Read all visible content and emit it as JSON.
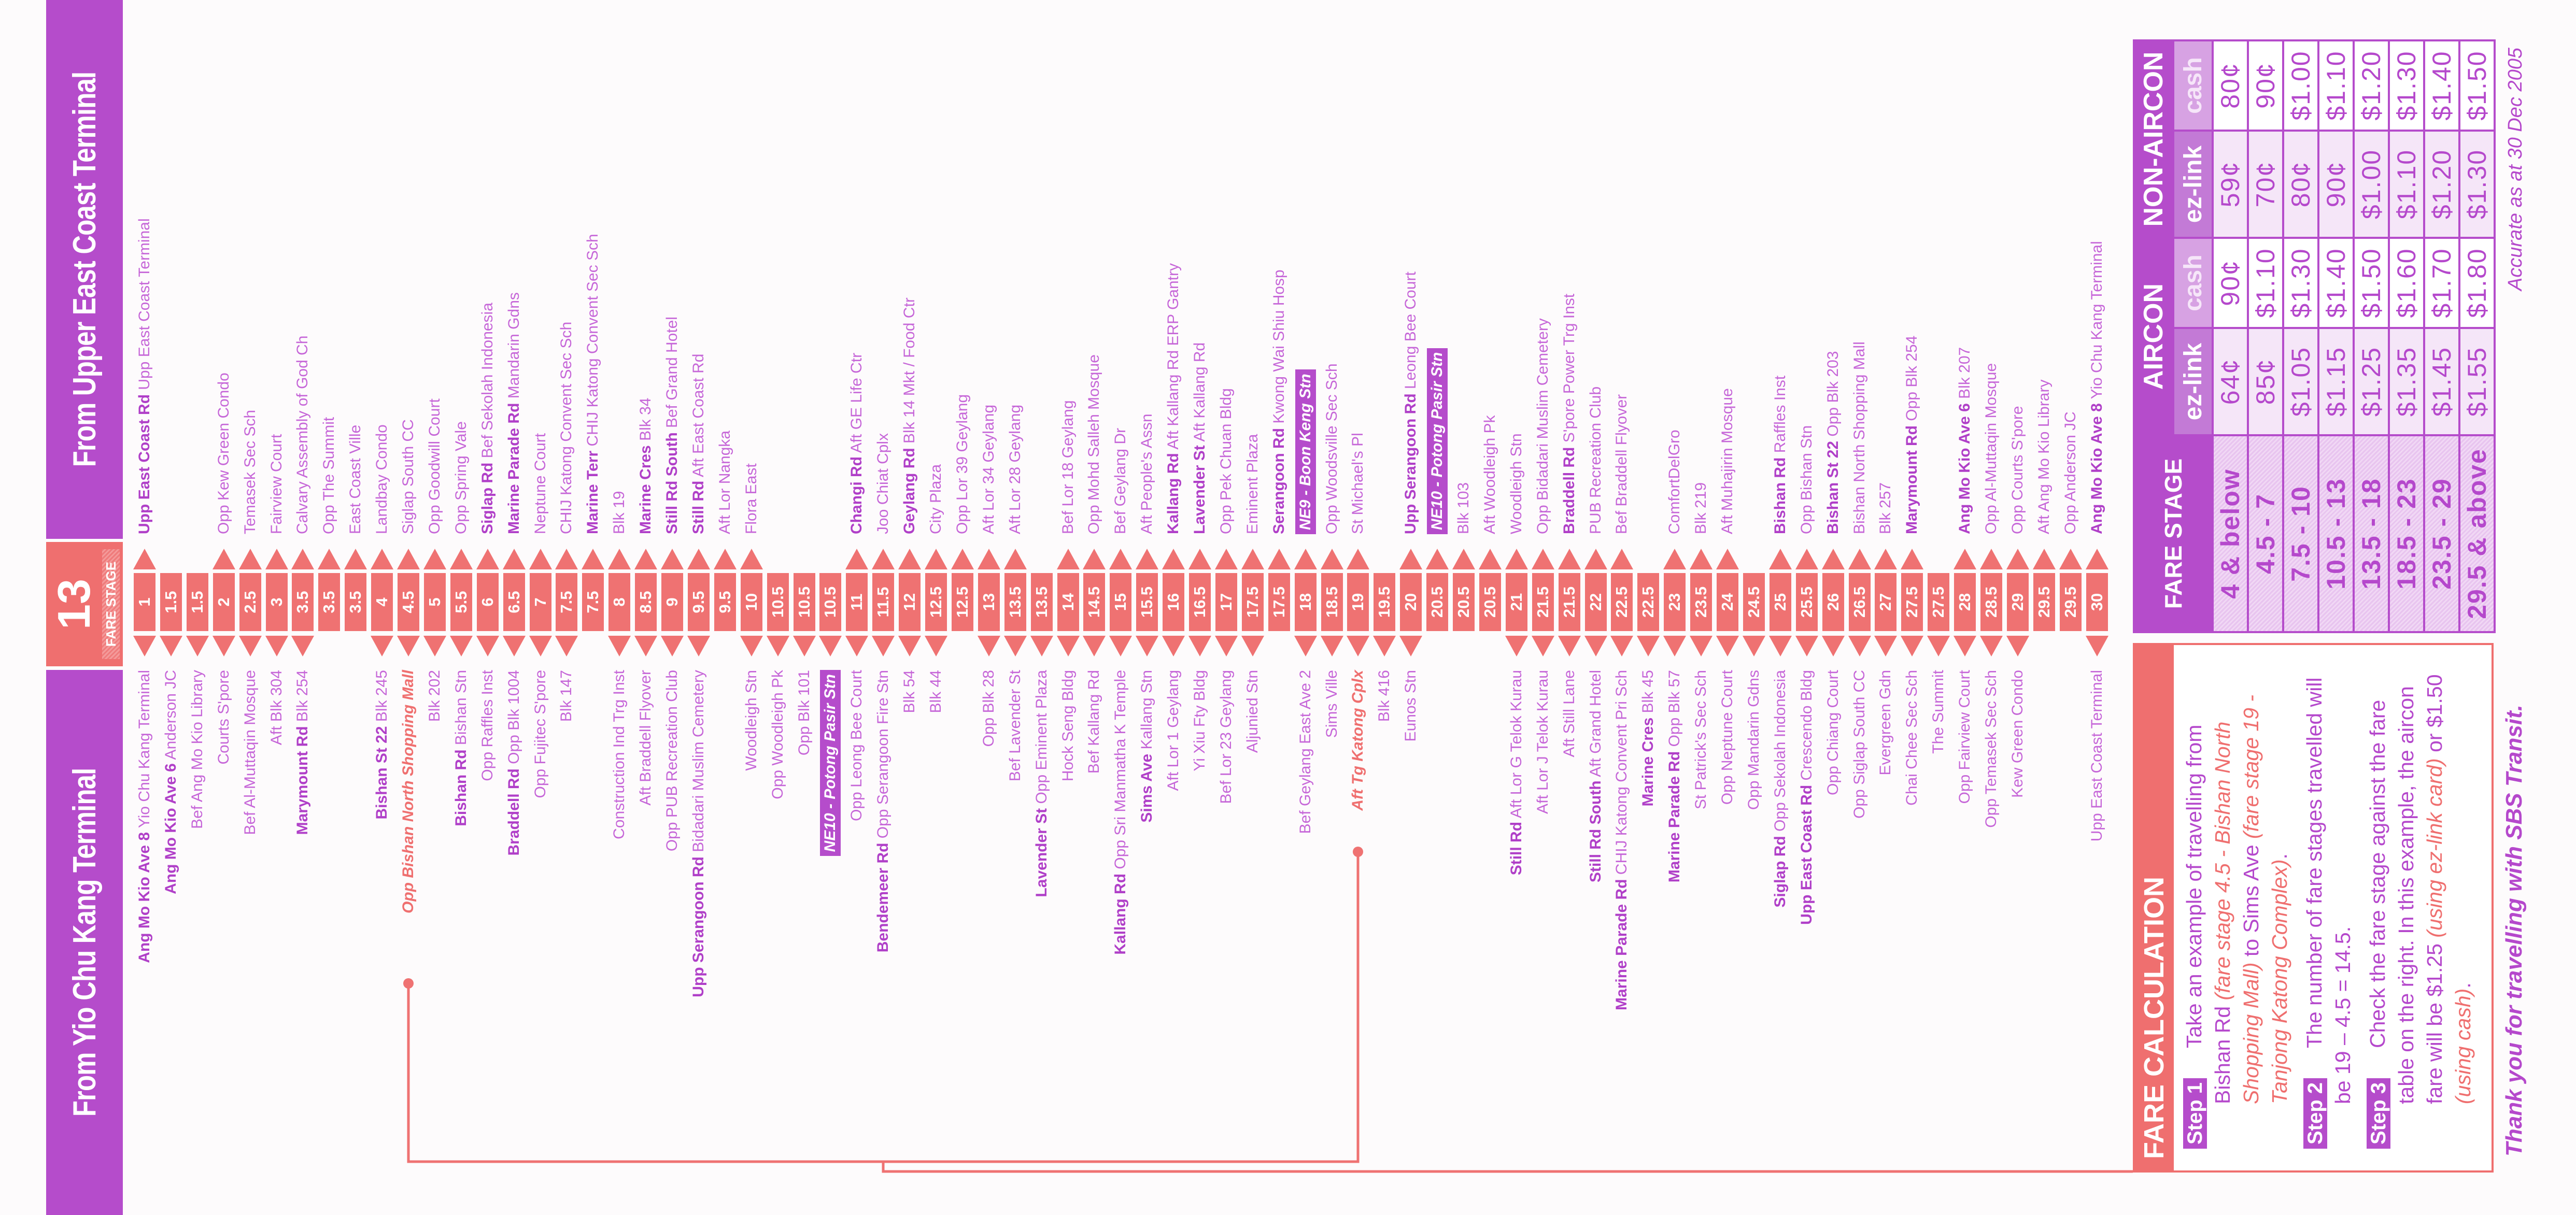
{
  "header": {
    "from_left": "From Yio Chu Kang Terminal",
    "from_right": "From Upper East Coast Terminal"
  },
  "badge": {
    "number": "13",
    "label": "FARE STAGE"
  },
  "colors": {
    "purple": "#b54ccb",
    "salmon": "#ef6f6f",
    "stop_text": "#c666d8"
  },
  "rows": [
    {
      "stage": "1",
      "left": {
        "road": "Ang Mo Kio Ave 8",
        "stop": "Yio Chu Kang Terminal"
      },
      "right": {
        "road": "Upp East Coast Rd",
        "stop": "Upp East Coast Terminal"
      }
    },
    {
      "stage": "1.5",
      "left": {
        "road": "Ang Mo Kio Ave 6",
        "stop": "Anderson JC"
      },
      "right": null
    },
    {
      "stage": "1.5",
      "left": {
        "stop": "Bef Ang Mo Kio Library"
      },
      "right": null
    },
    {
      "stage": "2",
      "left": {
        "stop": "Courts S'pore"
      },
      "right": {
        "stop": "Opp Kew Green Condo"
      }
    },
    {
      "stage": "2.5",
      "left": {
        "stop": "Bef Al-Muttaqin Mosque"
      },
      "right": {
        "stop": "Temasek Sec Sch"
      }
    },
    {
      "stage": "3",
      "left": {
        "stop": "Aft Blk 304"
      },
      "right": {
        "stop": "Fairview Court"
      }
    },
    {
      "stage": "3.5",
      "left": {
        "road": "Marymount Rd",
        "stop": "Blk 254"
      },
      "right": {
        "stop": "Calvary Assembly of God Ch"
      }
    },
    {
      "stage": "3.5",
      "left": null,
      "right": {
        "stop": "Opp The Summit"
      }
    },
    {
      "stage": "3.5",
      "left": null,
      "right": {
        "stop": "East Coast Ville"
      }
    },
    {
      "stage": "4",
      "left": {
        "road": "Bishan St 22",
        "stop": "Blk 245"
      },
      "right": {
        "stop": "Landbay Condo"
      }
    },
    {
      "stage": "4.5",
      "left": {
        "stop": "Opp Bishan North Shopping Mall",
        "type": "example"
      },
      "right": {
        "stop": "Siglap South CC"
      }
    },
    {
      "stage": "5",
      "left": {
        "stop": "Blk 202"
      },
      "right": {
        "stop": "Opp Goodwill Court"
      }
    },
    {
      "stage": "5.5",
      "left": {
        "road": "Bishan Rd",
        "stop": "Bishan Stn"
      },
      "right": {
        "stop": "Opp Spring Vale"
      }
    },
    {
      "stage": "6",
      "left": {
        "stop": "Opp Raffles Inst"
      },
      "right": {
        "road": "Siglap Rd",
        "stop": "Bef Sekolah Indonesia"
      }
    },
    {
      "stage": "6.5",
      "left": {
        "road": "Braddell Rd",
        "stop": "Opp Blk 1004"
      },
      "right": {
        "road": "Marine Parade Rd",
        "stop": "Mandarin Gdns"
      }
    },
    {
      "stage": "7",
      "left": {
        "stop": "Opp Fujitec S'pore"
      },
      "right": {
        "stop": "Neptune Court"
      }
    },
    {
      "stage": "7.5",
      "left": {
        "stop": "Blk 147"
      },
      "right": {
        "stop": "CHIJ Katong Convent Sec Sch"
      }
    },
    {
      "stage": "7.5",
      "left": null,
      "right": {
        "road": "Marine Terr",
        "stop": "CHIJ Katong Convent Sec Sch"
      }
    },
    {
      "stage": "8",
      "left": {
        "stop": "Construction Ind Trg Inst"
      },
      "right": {
        "stop": "Blk 19"
      }
    },
    {
      "stage": "8.5",
      "left": {
        "stop": "Aft Braddell Flyover"
      },
      "right": {
        "road": "Marine Cres",
        "stop": "Blk 34"
      }
    },
    {
      "stage": "9",
      "left": {
        "stop": "Opp PUB Recreation Club"
      },
      "right": {
        "road": "Still Rd South",
        "stop": "Bef Grand Hotel"
      }
    },
    {
      "stage": "9.5",
      "left": {
        "road": "Upp Serangoon Rd",
        "stop": "Bidadari Muslim Cemetery"
      },
      "right": {
        "road": "Still Rd",
        "stop": "Aft East Coast Rd"
      }
    },
    {
      "stage": "9.5",
      "left": null,
      "right": {
        "stop": "Aft Lor Nangka"
      }
    },
    {
      "stage": "10",
      "left": {
        "stop": "Woodleigh Stn"
      },
      "right": {
        "stop": "Flora East"
      }
    },
    {
      "stage": "10.5",
      "left": {
        "stop": "Opp Woodleigh Pk"
      },
      "right": null
    },
    {
      "stage": "10.5",
      "left": {
        "stop": "Opp Blk 101"
      },
      "right": null
    },
    {
      "stage": "10.5",
      "left": {
        "stop": "NE10 - Potong Pasir Stn",
        "type": "mrt"
      },
      "right": null
    },
    {
      "stage": "11",
      "left": {
        "stop": "Opp Leong Bee Court"
      },
      "right": {
        "road": "Changi Rd",
        "stop": "Aft GE Life Ctr"
      }
    },
    {
      "stage": "11.5",
      "left": {
        "road": "Bendemeer Rd",
        "stop": "Opp Serangoon Fire Stn"
      },
      "right": {
        "stop": "Joo Chiat Cplx"
      }
    },
    {
      "stage": "12",
      "left": {
        "stop": "Blk 54"
      },
      "right": {
        "road": "Geylang Rd",
        "stop": "Blk 14 Mkt / Food Ctr"
      }
    },
    {
      "stage": "12.5",
      "left": {
        "stop": "Blk 44"
      },
      "right": {
        "stop": "City Plaza"
      }
    },
    {
      "stage": "12.5",
      "left": null,
      "right": {
        "stop": "Opp Lor 39 Geylang"
      }
    },
    {
      "stage": "13",
      "left": {
        "stop": "Opp Blk 28"
      },
      "right": {
        "stop": "Aft Lor 34 Geylang"
      }
    },
    {
      "stage": "13.5",
      "left": {
        "stop": "Bef Lavender St"
      },
      "right": {
        "stop": "Aft Lor 28 Geylang"
      }
    },
    {
      "stage": "13.5",
      "left": {
        "road": "Lavender St",
        "stop": "Opp Eminent Plaza"
      },
      "right": null
    },
    {
      "stage": "14",
      "left": {
        "stop": "Hock Seng Bldg"
      },
      "right": {
        "stop": "Bef Lor 18 Geylang"
      }
    },
    {
      "stage": "14.5",
      "left": {
        "stop": "Bef Kallang Rd"
      },
      "right": {
        "stop": "Opp Mohd Salleh Mosque"
      }
    },
    {
      "stage": "15",
      "left": {
        "road": "Kallang Rd",
        "stop": "Opp Sri Manmatha K Temple"
      },
      "right": {
        "stop": "Bef Geylang Dr"
      }
    },
    {
      "stage": "15.5",
      "left": {
        "road": "Sims Ave",
        "stop": "Kallang Stn"
      },
      "right": {
        "stop": "Aft People's Assn"
      }
    },
    {
      "stage": "16",
      "left": {
        "stop": "Aft Lor 1 Geylang"
      },
      "right": {
        "road": "Kallang Rd",
        "stop": "Aft Kallang Rd ERP Gantry"
      }
    },
    {
      "stage": "16.5",
      "left": {
        "stop": "Yi Xiu Fty Bldg"
      },
      "right": {
        "road": "Lavender St",
        "stop": "Aft Kallang Rd"
      }
    },
    {
      "stage": "17",
      "left": {
        "stop": "Bef Lor 23 Geylang"
      },
      "right": {
        "stop": "Opp Pek Chuan Bldg"
      }
    },
    {
      "stage": "17.5",
      "left": {
        "stop": "Aljunied Stn"
      },
      "right": {
        "stop": "Eminent Plaza"
      }
    },
    {
      "stage": "17.5",
      "left": null,
      "right": {
        "road": "Serangoon Rd",
        "stop": "Kwong Wai Shiu Hosp"
      }
    },
    {
      "stage": "18",
      "left": {
        "stop": "Bef Geylang East Ave 2"
      },
      "right": {
        "stop": "NE9 - Boon Keng Stn",
        "type": "mrt"
      }
    },
    {
      "stage": "18.5",
      "left": {
        "stop": "Sims Ville"
      },
      "right": {
        "stop": "Opp Woodsville Sec Sch"
      }
    },
    {
      "stage": "19",
      "left": {
        "stop": "Aft Tg Katong Cplx",
        "type": "example"
      },
      "right": {
        "stop": "St Michael's Pl"
      }
    },
    {
      "stage": "19.5",
      "left": {
        "stop": "Blk 416"
      },
      "right": null
    },
    {
      "stage": "20",
      "left": {
        "stop": "Eunos Stn"
      },
      "right": {
        "road": "Upp Serangoon Rd",
        "stop": "Leong Bee Court"
      }
    },
    {
      "stage": "20.5",
      "left": null,
      "right": {
        "stop": "NE10 - Potong Pasir Stn",
        "type": "mrt"
      }
    },
    {
      "stage": "20.5",
      "left": null,
      "right": {
        "stop": "Blk 103"
      }
    },
    {
      "stage": "20.5",
      "left": null,
      "right": {
        "stop": "Aft Woodleigh Pk"
      }
    },
    {
      "stage": "21",
      "left": {
        "road": "Still Rd",
        "stop": "Aft Lor G Telok Kurau"
      },
      "right": {
        "stop": "Woodleigh Stn"
      }
    },
    {
      "stage": "21.5",
      "left": {
        "stop": "Aft Lor J Telok Kurau"
      },
      "right": {
        "stop": "Opp Bidadari Muslim Cemetery"
      }
    },
    {
      "stage": "21.5",
      "left": {
        "stop": "Aft Still Lane"
      },
      "right": {
        "road": "Braddell Rd",
        "stop": "S'pore Power Trg Inst"
      }
    },
    {
      "stage": "22",
      "left": {
        "road": "Still Rd South",
        "stop": "Aft Grand Hotel"
      },
      "right": {
        "stop": "PUB Recreation Club"
      }
    },
    {
      "stage": "22.5",
      "left": {
        "road": "Marine Parade Rd",
        "stop": "CHIJ Katong Convent Pri Sch"
      },
      "right": {
        "stop": "Bef Braddell Flyover"
      }
    },
    {
      "stage": "22.5",
      "left": {
        "road": "Marine Cres",
        "stop": "Blk 45"
      },
      "right": null
    },
    {
      "stage": "23",
      "left": {
        "road": "Marine Parade Rd",
        "stop": "Opp Blk 57"
      },
      "right": {
        "stop": "ComfortDelGro"
      }
    },
    {
      "stage": "23.5",
      "left": {
        "stop": "St Patrick's Sec Sch"
      },
      "right": {
        "stop": "Blk 219"
      }
    },
    {
      "stage": "24",
      "left": {
        "stop": "Opp Neptune Court"
      },
      "right": {
        "stop": "Aft Muhajirin Mosque"
      }
    },
    {
      "stage": "24.5",
      "left": {
        "stop": "Opp Mandarin Gdns"
      },
      "right": null
    },
    {
      "stage": "25",
      "left": {
        "road": "Siglap Rd",
        "stop": "Opp Sekolah Indonesia"
      },
      "right": {
        "road": "Bishan Rd",
        "stop": "Raffles Inst"
      }
    },
    {
      "stage": "25.5",
      "left": {
        "road": "Upp East Coast Rd",
        "stop": "Crescendo Bldg"
      },
      "right": {
        "stop": "Opp Bishan Stn"
      }
    },
    {
      "stage": "26",
      "left": {
        "stop": "Opp Chiang Court"
      },
      "right": {
        "road": "Bishan St 22",
        "stop": "Opp Blk 203"
      }
    },
    {
      "stage": "26.5",
      "left": {
        "stop": "Opp Siglap South CC"
      },
      "right": {
        "stop": "Bishan North Shopping Mall"
      }
    },
    {
      "stage": "27",
      "left": {
        "stop": "Evergreen Gdn"
      },
      "right": {
        "stop": "Blk 257"
      }
    },
    {
      "stage": "27.5",
      "left": {
        "stop": "Chai Chee Sec Sch"
      },
      "right": {
        "road": "Marymount Rd",
        "stop": "Opp Blk 254"
      }
    },
    {
      "stage": "27.5",
      "left": {
        "stop": "The Summit"
      },
      "right": null
    },
    {
      "stage": "28",
      "left": {
        "stop": "Opp Fairview Court"
      },
      "right": {
        "road": "Ang Mo Kio Ave 6",
        "stop": "Blk 207"
      }
    },
    {
      "stage": "28.5",
      "left": {
        "stop": "Opp Temasek Sec Sch"
      },
      "right": {
        "stop": "Opp Al-Muttaqin Mosque"
      }
    },
    {
      "stage": "29",
      "left": {
        "stop": "Kew Green Condo"
      },
      "right": {
        "stop": "Opp Courts S'pore"
      }
    },
    {
      "stage": "29.5",
      "left": null,
      "right": {
        "stop": "Aft Ang Mo Kio Library"
      }
    },
    {
      "stage": "29.5",
      "left": null,
      "right": {
        "stop": "Opp Anderson JC"
      }
    },
    {
      "stage": "30",
      "left": {
        "stop": "Upp East Coast Terminal"
      },
      "right": {
        "road": "Ang Mo Kio Ave 8",
        "stop": "Yio Chu Kang Terminal"
      }
    }
  ],
  "fare_calc": {
    "title": "FARE CALCULATION",
    "steps": [
      {
        "label": "Step 1",
        "segments": [
          {
            "t": "Take an example of travelling from Bishan Rd "
          },
          {
            "t": "(fare stage 4.5 - Bishan North Shopping Mall)",
            "em": true
          },
          {
            "t": " to Sims Ave "
          },
          {
            "t": "(fare stage 19 - Tanjong Katong Complex)",
            "em": true
          },
          {
            "t": "."
          }
        ]
      },
      {
        "label": "Step 2",
        "segments": [
          {
            "t": "The number of fare stages travelled will be 19 – 4.5 = 14.5."
          }
        ]
      },
      {
        "label": "Step 3",
        "segments": [
          {
            "t": "Check the fare stage against the fare table on the right. In this example, the aircon fare will be $1.25 "
          },
          {
            "t": "(using ez-link card)",
            "em": true
          },
          {
            "t": " or $1.50 "
          },
          {
            "t": "(using cash)",
            "em": true
          },
          {
            "t": "."
          }
        ]
      }
    ]
  },
  "fare_table": {
    "stage_header": "FARE STAGE",
    "groups": [
      "AIRCON",
      "NON-AIRCON"
    ],
    "sub_headers": [
      "ez-link",
      "cash",
      "ez-link",
      "cash"
    ],
    "rows": [
      {
        "stage": "4 & below",
        "values": [
          "64¢",
          "90¢",
          "59¢",
          "80¢"
        ]
      },
      {
        "stage": "4.5 - 7",
        "values": [
          "85¢",
          "$1.10",
          "70¢",
          "90¢"
        ]
      },
      {
        "stage": "7.5 - 10",
        "values": [
          "$1.05",
          "$1.30",
          "80¢",
          "$1.00"
        ]
      },
      {
        "stage": "10.5 - 13",
        "values": [
          "$1.15",
          "$1.40",
          "90¢",
          "$1.10"
        ]
      },
      {
        "stage": "13.5 - 18",
        "values": [
          "$1.25",
          "$1.50",
          "$1.00",
          "$1.20"
        ]
      },
      {
        "stage": "18.5 - 23",
        "values": [
          "$1.35",
          "$1.60",
          "$1.10",
          "$1.30"
        ]
      },
      {
        "stage": "23.5 - 29",
        "values": [
          "$1.45",
          "$1.70",
          "$1.20",
          "$1.40"
        ]
      },
      {
        "stage": "29.5 & above",
        "values": [
          "$1.55",
          "$1.80",
          "$1.30",
          "$1.50"
        ]
      }
    ]
  },
  "accurate_note": "Accurate as at 30 Dec 2005",
  "thanks": "Thank you for travelling with SBS Transit."
}
